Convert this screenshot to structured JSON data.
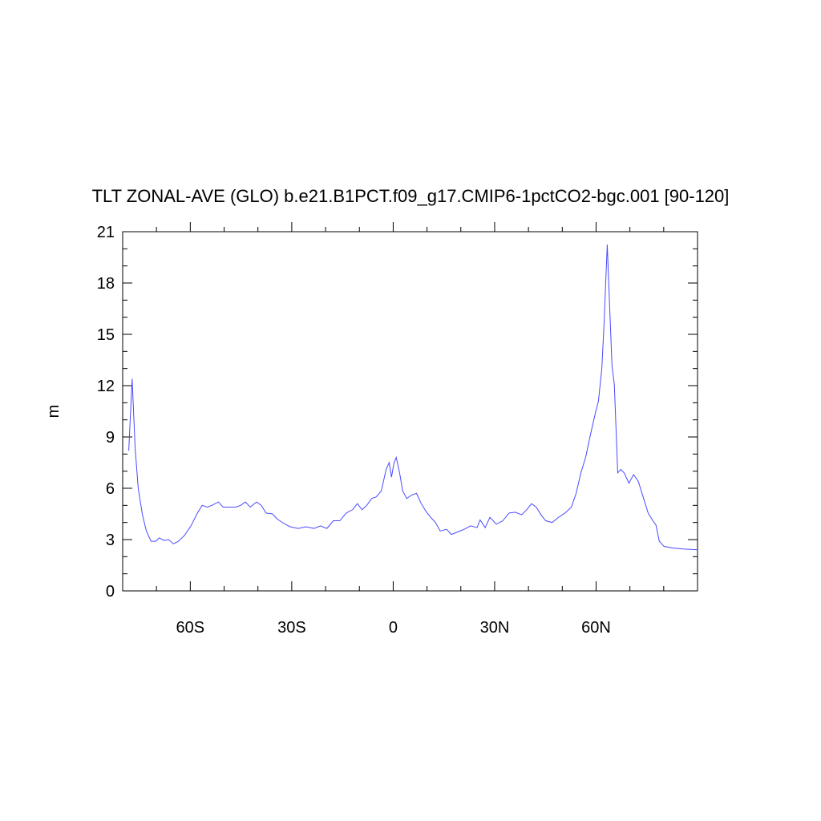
{
  "chart_data": {
    "type": "line",
    "title": "TLT ZONAL-AVE (GLO) b.e21.B1PCT.f09_g17.CMIP6-1pctCO2-bgc.001 [90-120]",
    "ylabel": "m",
    "color": "#4a4aff",
    "x": [
      -78.2,
      -77.2,
      -76.3,
      -75.4,
      -74.2,
      -73,
      -71.6,
      -70.2,
      -69.2,
      -67.8,
      -66.4,
      -65,
      -63.5,
      -61.7,
      -59.8,
      -57.9,
      -56.5,
      -55,
      -53.6,
      -51.7,
      -50.3,
      -48.4,
      -46.5,
      -45.1,
      -43.7,
      -42.3,
      -40.4,
      -39,
      -37.6,
      -35.7,
      -34.3,
      -32.4,
      -30.5,
      -28.1,
      -25.8,
      -23.4,
      -21.5,
      -19.6,
      -17.7,
      -15.8,
      -13.9,
      -12,
      -10.6,
      -9.2,
      -7.8,
      -6.4,
      -5,
      -3.5,
      -2.1,
      -1.2,
      -0.5,
      0.2,
      0.9,
      1.9,
      2.8,
      4,
      5.4,
      6.9,
      8.3,
      9.7,
      11.1,
      12.5,
      13.9,
      15.8,
      17.2,
      19.1,
      21,
      22.9,
      24.8,
      25.7,
      27.2,
      28.6,
      30.5,
      32.4,
      34.3,
      36.1,
      38,
      39.5,
      40.9,
      42.3,
      43.7,
      45.1,
      47,
      48.9,
      50.8,
      52.7,
      54.1,
      55.5,
      56.9,
      58.4,
      59.8,
      60.7,
      61.7,
      62.4,
      63.3,
      64,
      64.7,
      65.4,
      66.4,
      67.3,
      68.3,
      69.7,
      71.1,
      72.5,
      73.9,
      75.4,
      76.8,
      77.7,
      78.7,
      80.1,
      82.9,
      85.8,
      90
    ],
    "values": [
      8.2,
      12.4,
      8.3,
      6.0,
      4.5,
      3.5,
      2.9,
      2.9,
      3.1,
      2.95,
      3.0,
      2.75,
      2.9,
      3.25,
      3.8,
      4.55,
      5.0,
      4.9,
      5.0,
      5.2,
      4.9,
      4.9,
      4.9,
      5.0,
      5.2,
      4.9,
      5.2,
      5.0,
      4.55,
      4.5,
      4.2,
      3.95,
      3.75,
      3.65,
      3.75,
      3.65,
      3.8,
      3.65,
      4.1,
      4.1,
      4.55,
      4.75,
      5.1,
      4.75,
      5.0,
      5.4,
      5.5,
      5.85,
      7.1,
      7.5,
      6.65,
      7.45,
      7.8,
      6.9,
      5.85,
      5.4,
      5.6,
      5.7,
      5.1,
      4.65,
      4.3,
      4.0,
      3.5,
      3.6,
      3.3,
      3.45,
      3.6,
      3.8,
      3.7,
      4.15,
      3.7,
      4.3,
      3.9,
      4.1,
      4.55,
      4.6,
      4.45,
      4.75,
      5.1,
      4.9,
      4.45,
      4.1,
      4.0,
      4.3,
      4.55,
      4.9,
      5.7,
      6.9,
      7.8,
      9.2,
      10.4,
      11.1,
      13.0,
      15.8,
      20.25,
      16.7,
      13.2,
      12.05,
      6.9,
      7.1,
      6.9,
      6.3,
      6.8,
      6.4,
      5.5,
      4.55,
      4.1,
      3.85,
      2.9,
      2.6,
      2.5,
      2.45,
      2.4
    ],
    "xlim": [
      -80,
      90
    ],
    "ylim": [
      0,
      21
    ],
    "xticks": [
      {
        "value": -60,
        "label": "60S"
      },
      {
        "value": -30,
        "label": "30S"
      },
      0,
      {
        "value": 30,
        "label": "30N"
      },
      {
        "value": 60,
        "label": "60N"
      }
    ],
    "xminorticks": [
      -70,
      -50,
      -40,
      -20,
      -10,
      10,
      20,
      40,
      50,
      70,
      80
    ],
    "yticks": [
      0,
      3,
      6,
      9,
      12,
      15,
      18,
      21
    ],
    "yminorticks": [
      1,
      2,
      4,
      5,
      7,
      8,
      10,
      11,
      13,
      14,
      16,
      17,
      19,
      20
    ]
  }
}
